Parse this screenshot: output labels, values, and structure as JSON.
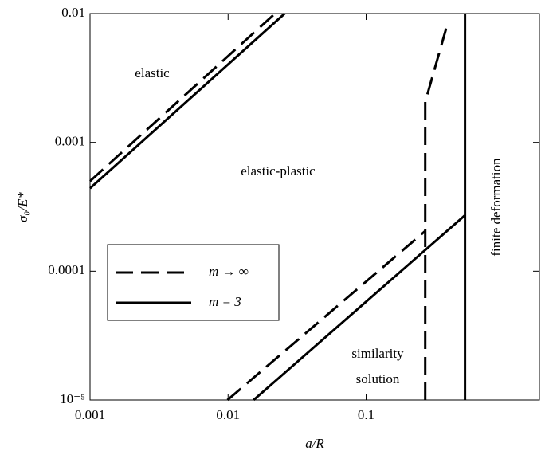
{
  "chart_data": {
    "type": "line",
    "x_label": "a/R",
    "y_label": "σ₀/E*",
    "xscale": "log",
    "yscale": "log",
    "xlim": [
      0.001,
      1.8
    ],
    "ylim": [
      1e-05,
      0.01
    ],
    "xticks": [
      0.001,
      0.01,
      0.1
    ],
    "yticks": [
      {
        "value": 1e-05,
        "label": "10⁻⁵"
      },
      0.0001,
      0.001,
      0.01
    ],
    "legend": "lower left",
    "series": [
      {
        "name": "m → ∞",
        "color": "#000000",
        "linestyle": "dashed",
        "x": [
          0.001,
          0.0219,
          null,
          0.0099,
          0.268,
          null,
          0.268,
          0.268,
          0.384
        ],
        "values": [
          0.0005,
          0.01,
          null,
          1e-05,
          0.000205,
          null,
          1e-05,
          0.00206,
          0.008
        ]
      },
      {
        "name": "m = 3",
        "color": "#000000",
        "linestyle": "solid",
        "x": [
          0.001,
          0.0257,
          null,
          0.0153,
          0.52,
          null,
          0.52,
          0.52
        ],
        "values": [
          0.00044,
          0.01,
          null,
          1e-05,
          0.000272,
          null,
          1e-05,
          0.01
        ]
      }
    ],
    "annotations": [
      "elastic",
      "elastic-plastic",
      "similarity",
      "solution",
      "finite deformation"
    ]
  }
}
